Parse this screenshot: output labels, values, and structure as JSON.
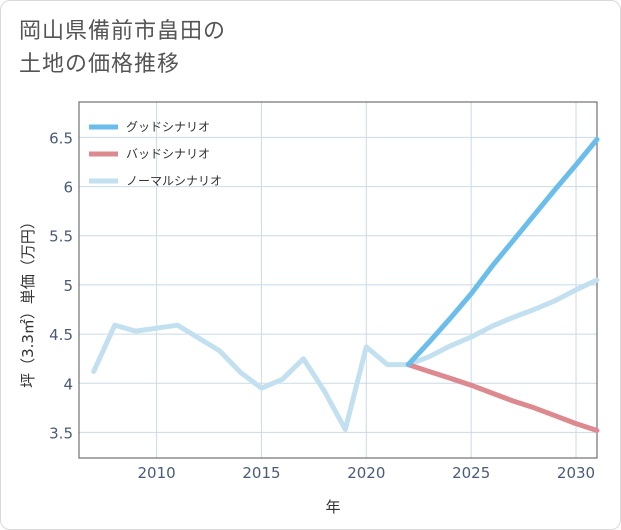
{
  "title_lines": [
    "岡山県備前市畠田の",
    "土地の価格推移"
  ],
  "chart_data": {
    "type": "line",
    "xlabel": "年",
    "ylabel": "坪（3.3㎡）単価（万円）",
    "xlim": [
      2006.3,
      2031
    ],
    "ylim": [
      3.24,
      6.86
    ],
    "x_ticks": [
      2010,
      2015,
      2020,
      2025,
      2030
    ],
    "y_ticks": [
      3.5,
      4,
      4.5,
      5,
      5.5,
      6,
      6.5
    ],
    "grid": true,
    "legend_position": "top-left",
    "series": [
      {
        "name": "グッドシナリオ",
        "color": "#6bbdec",
        "points": [
          [
            2022,
            4.19
          ],
          [
            2023,
            4.42
          ],
          [
            2024,
            4.66
          ],
          [
            2025,
            4.91
          ],
          [
            2026,
            5.19
          ],
          [
            2027,
            5.45
          ],
          [
            2028,
            5.71
          ],
          [
            2029,
            5.97
          ],
          [
            2030,
            6.22
          ],
          [
            2031,
            6.48
          ]
        ]
      },
      {
        "name": "バッドシナリオ",
        "color": "#dc8a8f",
        "points": [
          [
            2022,
            4.19
          ],
          [
            2023,
            4.12
          ],
          [
            2024,
            4.05
          ],
          [
            2025,
            3.98
          ],
          [
            2026,
            3.9
          ],
          [
            2027,
            3.82
          ],
          [
            2028,
            3.75
          ],
          [
            2029,
            3.67
          ],
          [
            2030,
            3.59
          ],
          [
            2031,
            3.52
          ]
        ]
      },
      {
        "name": "ノーマルシナリオ",
        "color": "#c2e0ef",
        "points": [
          [
            2007,
            4.12
          ],
          [
            2008,
            4.59
          ],
          [
            2009,
            4.53
          ],
          [
            2010,
            4.56
          ],
          [
            2011,
            4.59
          ],
          [
            2012,
            4.46
          ],
          [
            2013,
            4.33
          ],
          [
            2014,
            4.11
          ],
          [
            2015,
            3.95
          ],
          [
            2016,
            4.04
          ],
          [
            2017,
            4.25
          ],
          [
            2018,
            3.92
          ],
          [
            2019,
            3.53
          ],
          [
            2020,
            4.37
          ],
          [
            2021,
            4.19
          ],
          [
            2022,
            4.19
          ],
          [
            2023,
            4.27
          ],
          [
            2024,
            4.38
          ],
          [
            2025,
            4.47
          ],
          [
            2026,
            4.58
          ],
          [
            2027,
            4.67
          ],
          [
            2028,
            4.75
          ],
          [
            2029,
            4.84
          ],
          [
            2030,
            4.95
          ],
          [
            2031,
            5.05
          ]
        ]
      }
    ]
  }
}
